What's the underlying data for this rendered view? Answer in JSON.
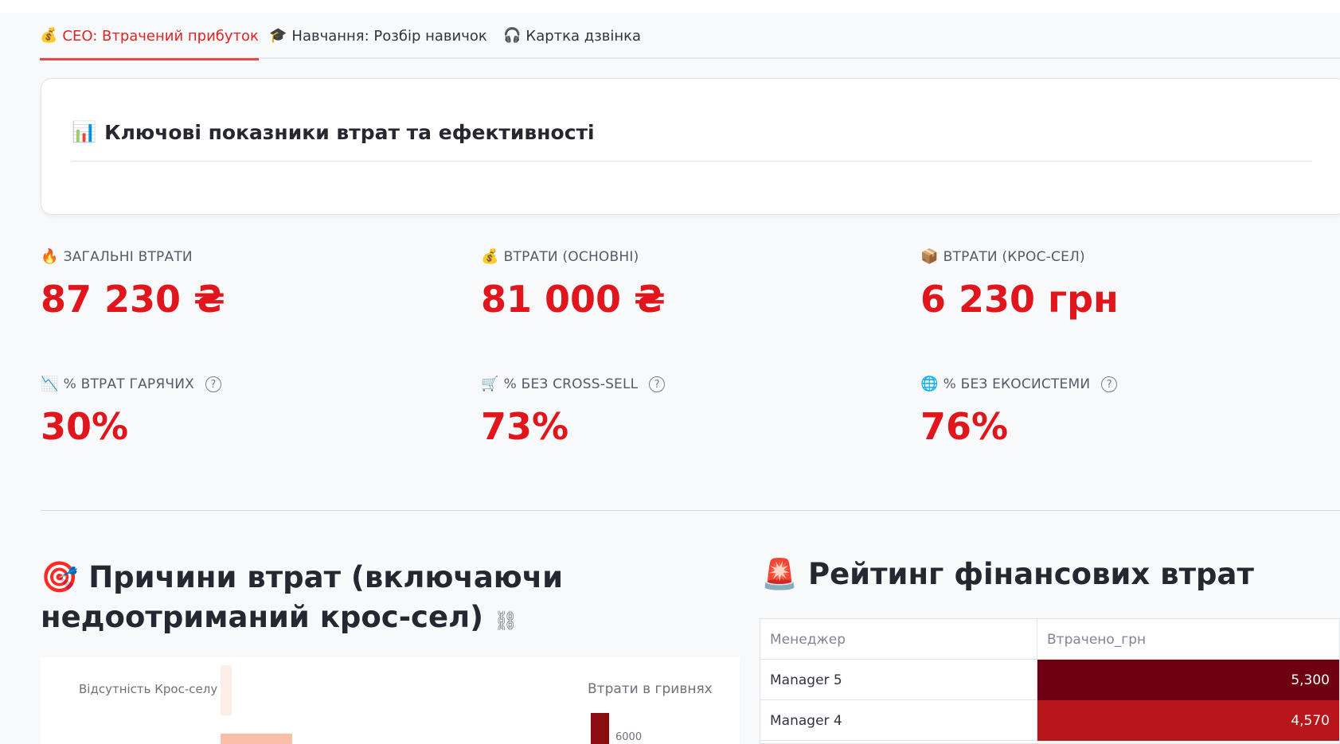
{
  "tabs": [
    {
      "icon": "💰",
      "label": "CEO: Втрачений прибуток",
      "active": true
    },
    {
      "icon": "🎓",
      "label": "Навчання: Розбір навичок",
      "active": false
    },
    {
      "icon": "🎧",
      "label": "Картка дзвінка",
      "active": false
    }
  ],
  "kpi_card": {
    "icon": "📊",
    "title": "Ключові показники втрат та ефективності"
  },
  "metrics": [
    {
      "icon": "🔥",
      "label": "ЗАГАЛЬНІ ВТРАТИ",
      "value": "87 230 ₴",
      "help": false
    },
    {
      "icon": "💰",
      "label": "ВТРАТИ (ОСНОВНІ)",
      "value": "81 000 ₴",
      "help": false
    },
    {
      "icon": "📦",
      "label": "ВТРАТИ (КРОС-СЕЛ)",
      "value": "6 230 грн",
      "help": false
    },
    {
      "icon": "📉",
      "label": "% ВТРАТ ГАРЯЧИХ",
      "value": "30%",
      "help": true
    },
    {
      "icon": "🛒",
      "label": "% БЕЗ CROSS-SELL",
      "value": "73%",
      "help": true
    },
    {
      "icon": "🌐",
      "label": "% БЕЗ ЕКОСИСТЕМИ",
      "value": "76%",
      "help": true
    }
  ],
  "help_glyph": "?",
  "section_left": {
    "icon": "🎯",
    "title": "Причини втрат (включаючи недоотриманий крос-сел)",
    "link_icon": "⛓"
  },
  "section_right": {
    "icon": "🚨",
    "title": "Рейтинг фінансових втрат"
  },
  "chart_data": {
    "type": "bar",
    "categories": [
      "Відсутність Крос-селу"
    ],
    "legend_title": "Втрати в гривнях",
    "legend_tick": "6000",
    "colors": {
      "light": "#fdeee8",
      "mid": "#f9bfa8",
      "dark": "#8b0d12"
    }
  },
  "table": {
    "headers": [
      "Менеджер",
      "Втрачено_грн"
    ],
    "rows": [
      {
        "manager": "Manager 5",
        "value": "5,300",
        "color": "#6e0012"
      },
      {
        "manager": "Manager 4",
        "value": "4,570",
        "color": "#b8161b"
      }
    ]
  }
}
